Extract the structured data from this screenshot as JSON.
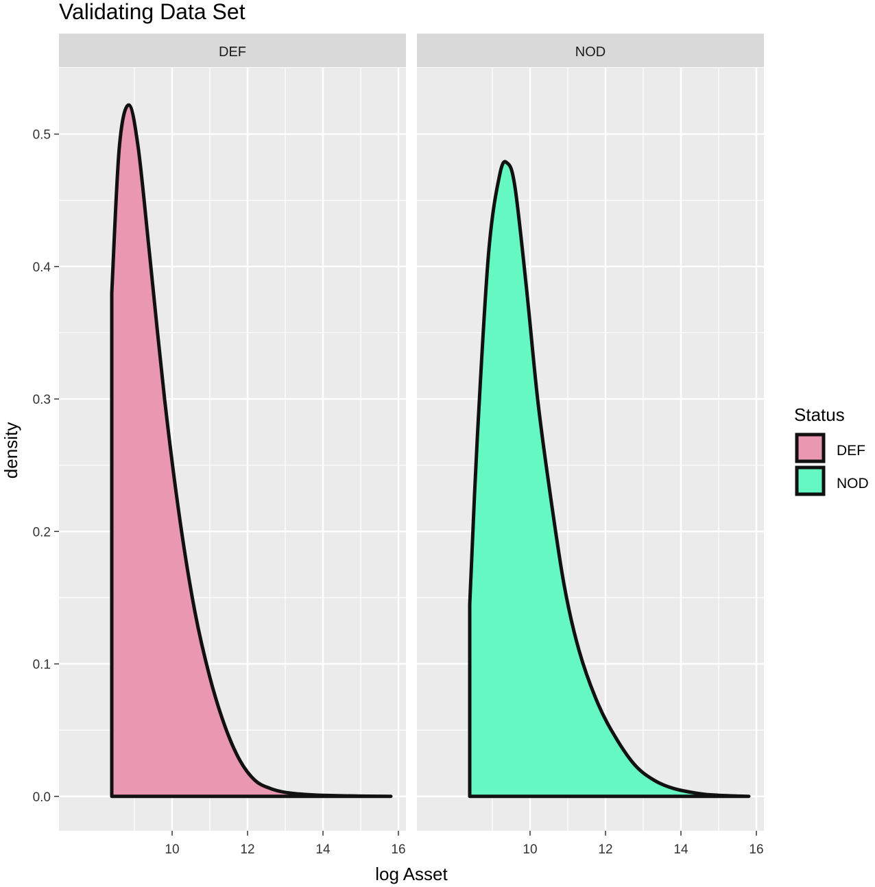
{
  "chart_data": {
    "type": "area",
    "title": "Validating Data Set",
    "xlabel": "log Asset",
    "ylabel": "density",
    "xlim": [
      7,
      16.2
    ],
    "ylim": [
      -0.026,
      0.55
    ],
    "x_ticks": [
      10,
      12,
      14,
      16
    ],
    "x_tick_labels": [
      "10",
      "12",
      "14",
      "16"
    ],
    "y_ticks": [
      0.0,
      0.1,
      0.2,
      0.3,
      0.4,
      0.5
    ],
    "y_tick_labels": [
      "0.0",
      "0.1",
      "0.2",
      "0.3",
      "0.4",
      "0.5"
    ],
    "grid": true,
    "legend": {
      "title": "Status",
      "position": "right",
      "entries": [
        {
          "label": "DEF",
          "color": "#ea98b1"
        },
        {
          "label": "NOD",
          "color": "#66f8c2"
        }
      ]
    },
    "panels": [
      {
        "strip": "DEF",
        "series": "DEF",
        "color": "#ea98b1",
        "x": [
          8.4,
          8.6,
          8.85,
          9.1,
          9.4,
          9.8,
          10.2,
          10.6,
          11.0,
          11.4,
          11.8,
          12.2,
          12.6,
          13.0,
          13.5,
          14.0,
          15.0,
          15.8
        ],
        "y": [
          0.38,
          0.49,
          0.522,
          0.49,
          0.41,
          0.3,
          0.21,
          0.14,
          0.09,
          0.053,
          0.027,
          0.012,
          0.006,
          0.003,
          0.0015,
          0.0008,
          0.0002,
          0.0
        ]
      },
      {
        "strip": "NOD",
        "series": "NOD",
        "color": "#66f8c2",
        "x": [
          8.4,
          8.6,
          8.9,
          9.2,
          9.4,
          9.6,
          9.9,
          10.2,
          10.5,
          10.9,
          11.3,
          11.8,
          12.3,
          12.8,
          13.3,
          13.8,
          14.5,
          15.0,
          15.8
        ],
        "y": [
          0.145,
          0.27,
          0.41,
          0.47,
          0.478,
          0.46,
          0.385,
          0.3,
          0.235,
          0.16,
          0.11,
          0.07,
          0.043,
          0.023,
          0.012,
          0.006,
          0.002,
          0.0008,
          0.0
        ]
      }
    ]
  }
}
